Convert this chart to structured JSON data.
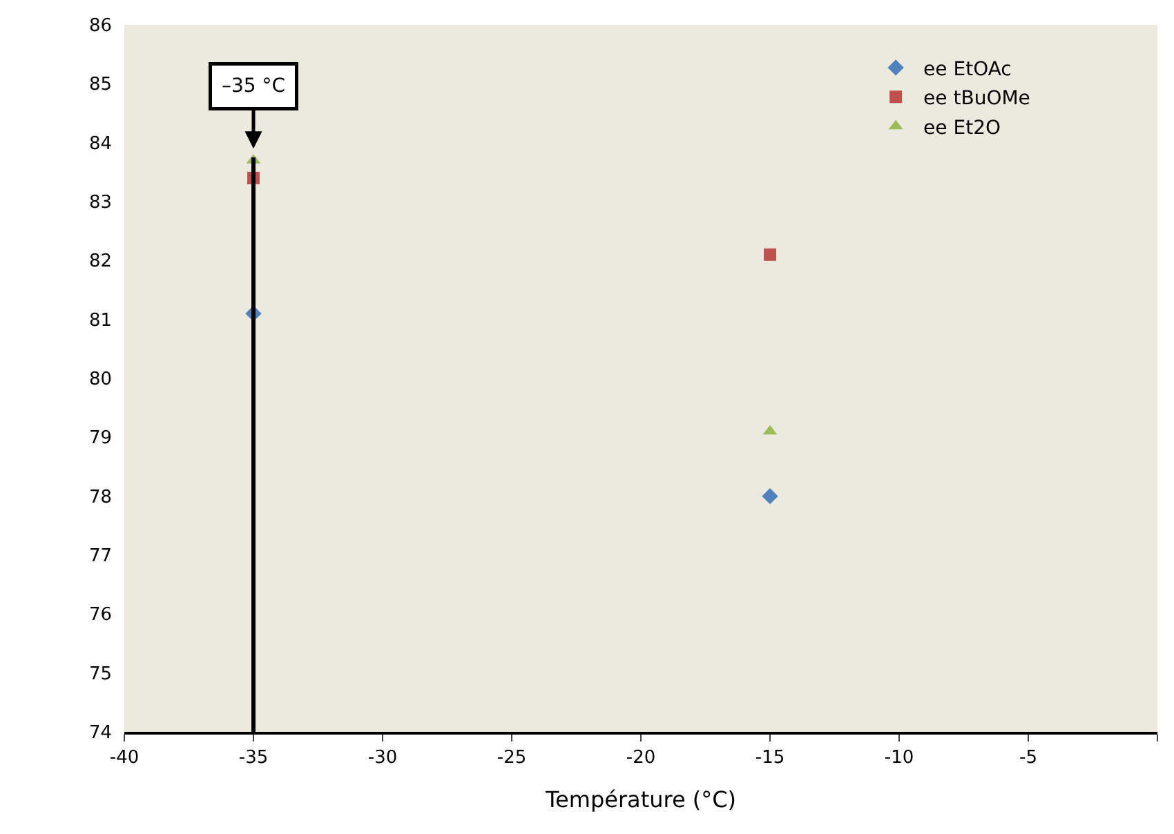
{
  "chart_data": {
    "type": "scatter",
    "xlabel": "Température (°C)",
    "x": [
      -35,
      -15
    ],
    "series": [
      {
        "name": "ee EtOAc",
        "color": "#4f81bd",
        "values": [
          81.1,
          78.0
        ],
        "marker": "diamond"
      },
      {
        "name": "ee tBuOMe",
        "color": "#c0504d",
        "values": [
          83.4,
          82.1
        ],
        "marker": "square"
      },
      {
        "name": "ee Et2O",
        "color": "#9bbb59",
        "values": [
          83.7,
          79.1
        ],
        "marker": "triangle"
      }
    ],
    "xlim": [
      -40,
      0
    ],
    "xticks": [
      -40,
      -35,
      -30,
      -25,
      -20,
      -15,
      -10,
      -5,
      {
        "value": 0,
        "label": null
      }
    ],
    "ylim": [
      74,
      86
    ],
    "yticks": [
      74,
      75,
      76,
      77,
      78,
      79,
      80,
      81,
      82,
      83,
      84,
      85,
      86
    ],
    "ref_lines": [
      {
        "axis": "x",
        "value": -35,
        "label": "–35 °C",
        "color": "#000000"
      }
    ],
    "grid": false,
    "legend": "top right"
  }
}
